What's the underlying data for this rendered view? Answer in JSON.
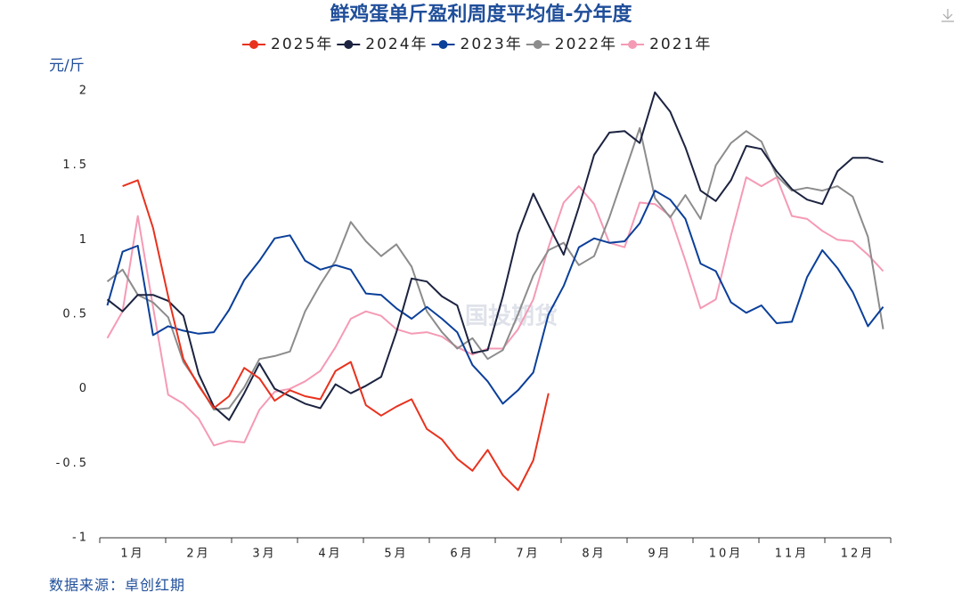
{
  "chart_data": {
    "type": "line",
    "title": "鲜鸡蛋单斤盈利周度平均值-分年度",
    "y_label": "元/斤",
    "source": "数据来源：卓创红期",
    "watermark": "国投期货",
    "month_labels": [
      "1月",
      "2月",
      "3月",
      "4月",
      "5月",
      "6月",
      "7月",
      "8月",
      "9月",
      "10月",
      "11月",
      "12月"
    ],
    "x": [
      1,
      2,
      3,
      4,
      5,
      6,
      7,
      8,
      9,
      10,
      11,
      12,
      13,
      14,
      15,
      16,
      17,
      18,
      19,
      20,
      21,
      22,
      23,
      24,
      25,
      26,
      27,
      28,
      29,
      30,
      31,
      32,
      33,
      34,
      35,
      36,
      37,
      38,
      39,
      40,
      41,
      42,
      43,
      44,
      45,
      46,
      47,
      48,
      49,
      50,
      51,
      52
    ],
    "xlim": [
      0.5,
      52.5
    ],
    "ylim": [
      -1,
      2
    ],
    "yticks": [
      2,
      1.5,
      1,
      0.5,
      0,
      -0.5,
      -1
    ],
    "series": [
      {
        "name": "2025年",
        "color": "#e8321e",
        "values": [
          null,
          1.36,
          1.4,
          1.08,
          0.62,
          0.2,
          0.02,
          -0.13,
          -0.05,
          0.14,
          0.07,
          -0.08,
          -0.01,
          -0.05,
          -0.07,
          0.12,
          0.18,
          -0.11,
          -0.18,
          -0.12,
          -0.07,
          -0.27,
          -0.34,
          -0.47,
          -0.55,
          -0.41,
          -0.58,
          -0.68,
          -0.48,
          -0.03,
          null,
          null,
          null,
          null,
          null,
          null,
          null,
          null,
          null,
          null,
          null,
          null,
          null,
          null,
          null,
          null,
          null,
          null,
          null,
          null,
          null,
          null
        ]
      },
      {
        "name": "2024年",
        "color": "#1c2340",
        "values": [
          0.6,
          0.52,
          0.63,
          0.63,
          0.59,
          0.49,
          0.1,
          -0.12,
          -0.21,
          -0.03,
          0.17,
          0.0,
          -0.05,
          -0.1,
          -0.13,
          0.03,
          -0.03,
          0.02,
          0.08,
          0.38,
          0.74,
          0.72,
          0.62,
          0.56,
          0.24,
          0.26,
          0.62,
          1.04,
          1.31,
          1.1,
          0.9,
          1.22,
          1.57,
          1.72,
          1.73,
          1.65,
          1.99,
          1.86,
          1.62,
          1.33,
          1.26,
          1.4,
          1.63,
          1.61,
          1.46,
          1.34,
          1.27,
          1.24,
          1.46,
          1.55,
          1.55,
          1.52
        ]
      },
      {
        "name": "2023年",
        "color": "#0a3f9a",
        "values": [
          0.56,
          0.92,
          0.96,
          0.36,
          0.42,
          0.39,
          0.37,
          0.38,
          0.53,
          0.73,
          0.86,
          1.01,
          1.03,
          0.86,
          0.8,
          0.83,
          0.8,
          0.64,
          0.63,
          0.54,
          0.47,
          0.55,
          0.47,
          0.38,
          0.16,
          0.05,
          -0.1,
          -0.01,
          0.11,
          0.5,
          0.69,
          0.95,
          1.01,
          0.98,
          0.99,
          1.11,
          1.33,
          1.27,
          1.14,
          0.84,
          0.79,
          0.58,
          0.51,
          0.56,
          0.44,
          0.45,
          0.75,
          0.93,
          0.81,
          0.65,
          0.42,
          0.55
        ]
      },
      {
        "name": "2022年",
        "color": "#8c8c8c",
        "values": [
          0.72,
          0.8,
          0.63,
          0.58,
          0.48,
          0.18,
          0.03,
          -0.14,
          -0.13,
          0.01,
          0.2,
          0.22,
          0.25,
          0.52,
          0.7,
          0.86,
          1.12,
          0.99,
          0.89,
          0.97,
          0.82,
          0.52,
          0.38,
          0.27,
          0.34,
          0.2,
          0.26,
          0.5,
          0.76,
          0.93,
          0.98,
          0.83,
          0.89,
          1.15,
          1.45,
          1.75,
          1.28,
          1.15,
          1.3,
          1.14,
          1.5,
          1.65,
          1.73,
          1.66,
          1.43,
          1.33,
          1.35,
          1.33,
          1.36,
          1.29,
          1.02,
          0.4
        ]
      },
      {
        "name": "2021年",
        "color": "#f59ab5",
        "values": [
          0.34,
          0.52,
          1.16,
          0.55,
          -0.04,
          -0.1,
          -0.2,
          -0.38,
          -0.35,
          -0.36,
          -0.14,
          -0.02,
          0.0,
          0.05,
          0.12,
          0.28,
          0.47,
          0.52,
          0.49,
          0.4,
          0.37,
          0.38,
          0.35,
          0.28,
          0.23,
          0.27,
          0.27,
          0.4,
          0.6,
          0.95,
          1.25,
          1.36,
          1.24,
          0.98,
          0.95,
          1.25,
          1.24,
          1.16,
          0.86,
          0.54,
          0.6,
          1.03,
          1.42,
          1.36,
          1.42,
          1.16,
          1.14,
          1.06,
          1.0,
          0.99,
          0.9,
          0.79
        ]
      }
    ]
  }
}
